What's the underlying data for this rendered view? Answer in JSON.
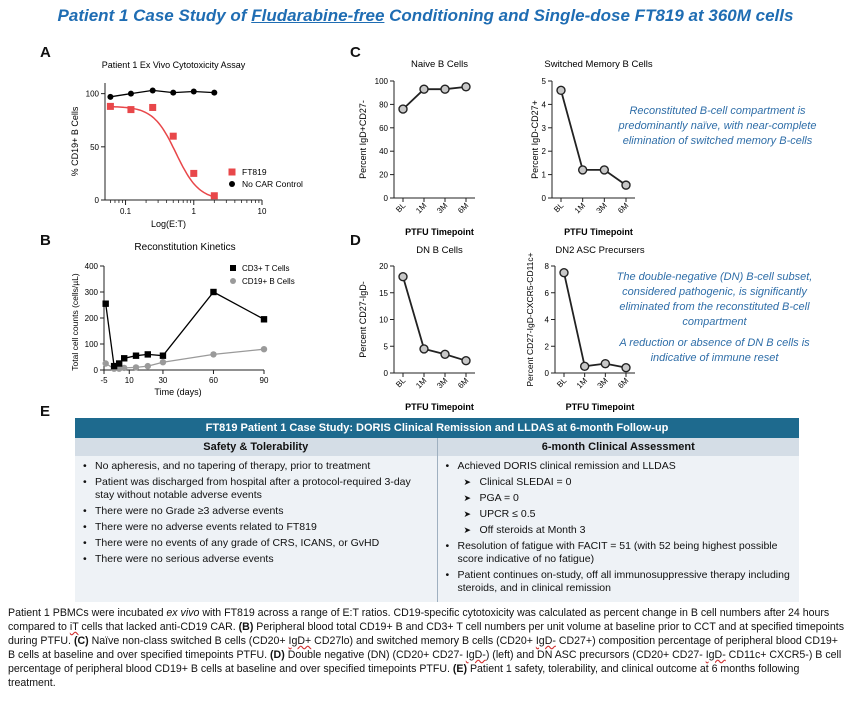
{
  "title": {
    "prefix": "Patient 1 Case Study of ",
    "underlined": "Fludarabine-free",
    "suffix": " Conditioning and Single-dose FT819 at 360M cells"
  },
  "panels": {
    "a": "A",
    "b": "B",
    "c": "C",
    "d": "D",
    "e": "E"
  },
  "notes": {
    "c_note": "Reconstituted B-cell compartment is predominantly naïve, with near-complete elimination of switched memory B-cells",
    "d_note1": "The double-negative (DN) B-cell subset, considered pathogenic, is significantly eliminated from the reconstituted B-cell compartment",
    "d_note2": "A reduction or absence of DN B cells is indicative of immune reset"
  },
  "chart_data": [
    {
      "id": "A",
      "type": "line",
      "title": "Patient 1 Ex Vivo Cytotoxicity Assay",
      "xlabel": "Log(E:T)",
      "ylabel": "% CD19+ B Cells",
      "xscale": "log",
      "xlim": [
        0.05,
        10
      ],
      "ylim": [
        0,
        110
      ],
      "xticks": [
        0.1,
        1,
        10
      ],
      "xtick_labels": [
        "0.1",
        "1",
        "10"
      ],
      "yticks": [
        0,
        50,
        100
      ],
      "ytick_labels": [
        "0",
        "50",
        "100"
      ],
      "series": [
        {
          "name": "FT819",
          "color": "#e8474a",
          "marker": "square",
          "x": [
            0.06,
            0.12,
            0.25,
            0.5,
            1,
            2
          ],
          "y": [
            88,
            85,
            87,
            60,
            25,
            4
          ]
        },
        {
          "name": "No CAR Control",
          "color": "#000000",
          "marker": "circle",
          "x": [
            0.06,
            0.12,
            0.25,
            0.5,
            1,
            2
          ],
          "y": [
            97,
            100,
            103,
            101,
            102,
            101
          ]
        }
      ]
    },
    {
      "id": "B",
      "type": "line",
      "title": "Reconstitution Kinetics",
      "xlabel": "Time (days)",
      "ylabel": "Total cell counts (cells/µL)",
      "xlim": [
        -5,
        90
      ],
      "ylim": [
        0,
        400
      ],
      "xticks": [
        -5,
        10,
        30,
        60,
        90
      ],
      "xtick_labels": [
        "-5",
        "10",
        "30",
        "60",
        "90"
      ],
      "yticks": [
        0,
        100,
        200,
        300,
        400
      ],
      "ytick_labels": [
        "0",
        "100",
        "200",
        "300",
        "400"
      ],
      "series": [
        {
          "name": "CD3+ T Cells",
          "color": "#000000",
          "marker": "square",
          "x": [
            -4,
            1,
            4,
            7,
            14,
            21,
            30,
            60,
            90
          ],
          "y": [
            255,
            15,
            25,
            45,
            55,
            60,
            55,
            300,
            195
          ]
        },
        {
          "name": "CD19+ B Cells",
          "color": "#9a9a9a",
          "marker": "circle",
          "x": [
            -4,
            1,
            4,
            7,
            14,
            21,
            30,
            60,
            90
          ],
          "y": [
            25,
            5,
            5,
            8,
            10,
            15,
            30,
            60,
            80
          ]
        }
      ]
    },
    {
      "id": "C1",
      "type": "line",
      "title": "Naive B Cells",
      "xlabel": "PTFU Timepoint",
      "ylabel": "Percent IgD+CD27-",
      "categories": [
        "BL",
        "1M",
        "3M",
        "6M"
      ],
      "ylim": [
        0,
        100
      ],
      "yticks": [
        0,
        20,
        40,
        60,
        80,
        100
      ],
      "ytick_labels": [
        "0",
        "20",
        "40",
        "60",
        "80",
        "100"
      ],
      "values": [
        76,
        93,
        93,
        95
      ]
    },
    {
      "id": "C2",
      "type": "line",
      "title": "Switched Memory B Cells",
      "xlabel": "PTFU Timepoint",
      "ylabel": "Percent IgD-CD27+",
      "categories": [
        "BL",
        "1M",
        "3M",
        "6M"
      ],
      "ylim": [
        0,
        5
      ],
      "yticks": [
        0,
        1,
        2,
        3,
        4,
        5
      ],
      "ytick_labels": [
        "0",
        "1",
        "2",
        "3",
        "4",
        "5"
      ],
      "values": [
        4.6,
        1.2,
        1.2,
        0.55
      ]
    },
    {
      "id": "D1",
      "type": "line",
      "title": "DN B Cells",
      "xlabel": "PTFU Timepoint",
      "ylabel": "Percent CD27-IgD-",
      "categories": [
        "BL",
        "1M",
        "3M",
        "6M"
      ],
      "ylim": [
        0,
        20
      ],
      "yticks": [
        0,
        5,
        10,
        15,
        20
      ],
      "ytick_labels": [
        "0",
        "5",
        "10",
        "15",
        "20"
      ],
      "values": [
        18,
        4.5,
        3.5,
        2.3
      ]
    },
    {
      "id": "D2",
      "type": "line",
      "title": "DN2 ASC Precursers",
      "xlabel": "PTFU Timepoint",
      "ylabel": "Percent CD27-IgD-CXCR5-CD11c+",
      "categories": [
        "BL",
        "1M",
        "3M",
        "6M"
      ],
      "ylim": [
        0,
        8
      ],
      "yticks": [
        0,
        2,
        4,
        6,
        8
      ],
      "ytick_labels": [
        "0",
        "2",
        "4",
        "6",
        "8"
      ],
      "values": [
        7.5,
        0.5,
        0.7,
        0.4
      ]
    }
  ],
  "table": {
    "header": "FT819 Patient 1 Case Study: DORIS Clinical Remission and LLDAS at 6-month Follow-up",
    "left_head": "Safety & Tolerability",
    "right_head": "6-month Clinical Assessment",
    "left_items": [
      "No apheresis, and no tapering of therapy, prior to treatment",
      "Patient was discharged from hospital after a protocol-required 3-day stay without notable adverse events",
      "There were no Grade ≥3 adverse events",
      "There were no adverse events related to FT819",
      "There were no events of any grade of CRS, ICANS, or GvHD",
      "There were no serious adverse events"
    ],
    "right_items": [
      {
        "text": "Achieved DORIS clinical remission and LLDAS",
        "sub": false
      },
      {
        "text": "Clinical SLEDAI = 0",
        "sub": true
      },
      {
        "text": "PGA = 0",
        "sub": true
      },
      {
        "text": "UPCR ≤ 0.5",
        "sub": true
      },
      {
        "text": "Off steroids at Month 3",
        "sub": true
      },
      {
        "text": "Resolution of fatigue with FACIT = 51 (with 52 being highest possible score indicative of no fatigue)",
        "sub": false
      },
      {
        "text": "Patient continues on-study, off all immunosuppressive therapy including steroids, and in clinical remission",
        "sub": false
      }
    ]
  },
  "caption": {
    "p1": "Patient 1 PBMCs were incubated ",
    "p1i": "ex vivo",
    "p2": " with FT819 across a range of  E:T ratios. CD19-specific cytotoxicity was calculated as percent change in B cell numbers after 24 hours compared to ",
    "iT": "iT",
    "p3": " cells that lacked anti-CD19 CAR. ",
    "b": "(B)",
    "p4": " Peripheral blood total CD19+ B and CD3+ T cell numbers per unit volume at baseline prior to CCT and at specified timepoints during PTFU. ",
    "c": "(C)",
    "p5": " Naïve non-class switched B cells (CD20+ ",
    "s1": "IgD+",
    "p6": " CD27lo) and switched memory B cells (CD20+ ",
    "s2": "IgD-",
    "p7": " CD27+) composition percentage of peripheral blood CD19+ B cells at baseline and over specified timepoints PTFU. ",
    "d": "(D)",
    "p8": " Double negative (DN) (CD20+ CD27- ",
    "s3": "IgD-",
    "p9": ") (left) and DN ASC precursors (CD20+ CD27- ",
    "s4": "IgD-",
    "p10": " CD11c+ CXCR5-) B cell percentage of peripheral blood CD19+ B cells at baseline and over specified timepoints PTFU. ",
    "e": "(E)",
    "p11": " Patient 1 safety, tolerability, and clinical outcome at 6 months following treatment."
  }
}
